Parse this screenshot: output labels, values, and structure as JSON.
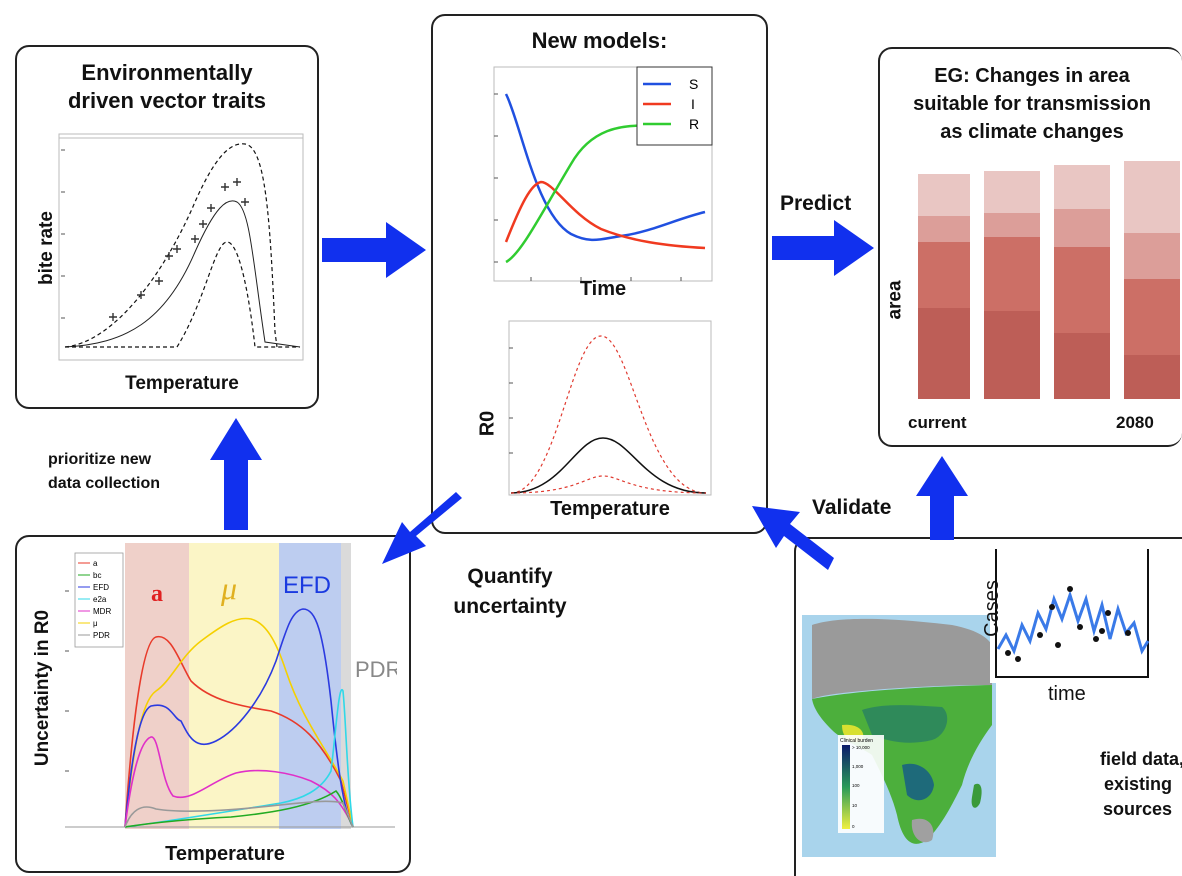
{
  "panels": {
    "vector_traits": {
      "title_line1": "Environmentally",
      "title_line2": "driven vector traits",
      "ylabel": "bite rate",
      "xlabel": "Temperature"
    },
    "new_models": {
      "title": "New models:",
      "sir_xlabel": "Time",
      "legend": [
        "S",
        "I",
        "R"
      ],
      "r0_ylabel": "R0",
      "r0_xlabel": "Temperature"
    },
    "area_change": {
      "title_line1": "EG: Changes in area",
      "title_line2": "suitable for transmission",
      "title_line3": "as climate changes",
      "ylabel": "area",
      "x_start": "current",
      "x_end": "2080"
    },
    "uncertainty": {
      "ylabel": "Uncertainty in R0",
      "xlabel": "Temperature",
      "legend": [
        "a",
        "bc",
        "EFD",
        "e2a",
        "MDR",
        "μ",
        "PDR"
      ],
      "band_a": "a",
      "band_mu": "μ",
      "band_efd": "EFD",
      "band_pdr": "PDR"
    },
    "field_data": {
      "inset_ylabel": "Cases",
      "inset_xlabel": "time",
      "caption_line1": "field data,",
      "caption_line2": "existing",
      "caption_line3": "sources",
      "map_legend_title": "Clinical burden",
      "map_legend_ticks": [
        "> 10,000",
        "1,000",
        "100",
        "10",
        "0"
      ]
    }
  },
  "arrows": {
    "predict": "Predict",
    "validate": "Validate",
    "prioritize_line1": "prioritize new",
    "prioritize_line2": "data collection",
    "quantify_line1": "Quantify",
    "quantify_line2": "uncertainty"
  },
  "colors": {
    "arrow": "#1130ee",
    "s": "#2050e0",
    "i": "#f03a20",
    "r": "#30cc30",
    "bar_base": "#c86a63"
  }
}
